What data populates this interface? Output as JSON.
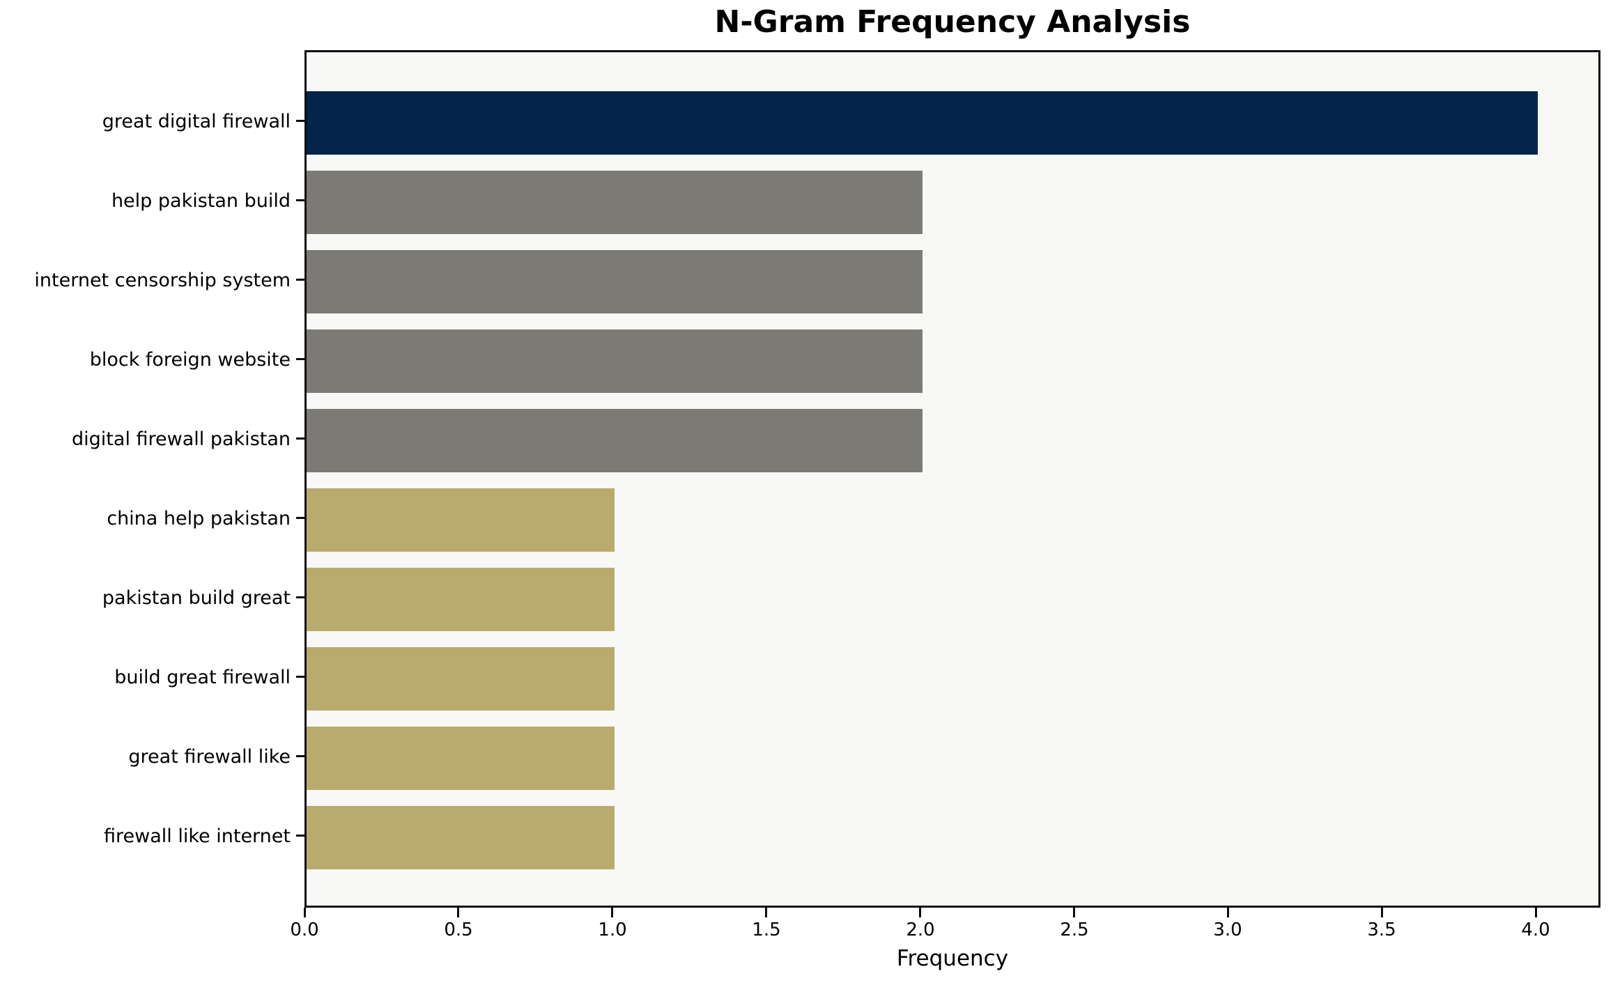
{
  "chart_data": {
    "type": "bar",
    "orientation": "horizontal",
    "title": "N-Gram Frequency Analysis",
    "xlabel": "Frequency",
    "ylabel": "",
    "categories": [
      "great digital firewall",
      "help pakistan build",
      "internet censorship system",
      "block foreign website",
      "digital firewall pakistan",
      "china help pakistan",
      "pakistan build great",
      "build great firewall",
      "great firewall like",
      "firewall like internet"
    ],
    "values": [
      4,
      2,
      2,
      2,
      2,
      1,
      1,
      1,
      1,
      1
    ],
    "bar_colors": [
      "#02234a",
      "#7b7a75",
      "#7b7a75",
      "#7b7a75",
      "#7b7a75",
      "#b9ab6e",
      "#b9ab6e",
      "#b9ab6e",
      "#b9ab6e",
      "#b9ab6e"
    ],
    "xticks": [
      0.0,
      0.5,
      1.0,
      1.5,
      2.0,
      2.5,
      3.0,
      3.5,
      4.0
    ],
    "xtick_labels": [
      "0.0",
      "0.5",
      "1.0",
      "1.5",
      "2.0",
      "2.5",
      "3.0",
      "3.5",
      "4.0"
    ],
    "xlim": [
      0,
      4.21
    ],
    "grid": false,
    "legend": null,
    "plot_background": "#f8f8f6",
    "figure_background": "#ffffff",
    "frame_color": "#0d0d0d",
    "text_color": "#000000"
  }
}
